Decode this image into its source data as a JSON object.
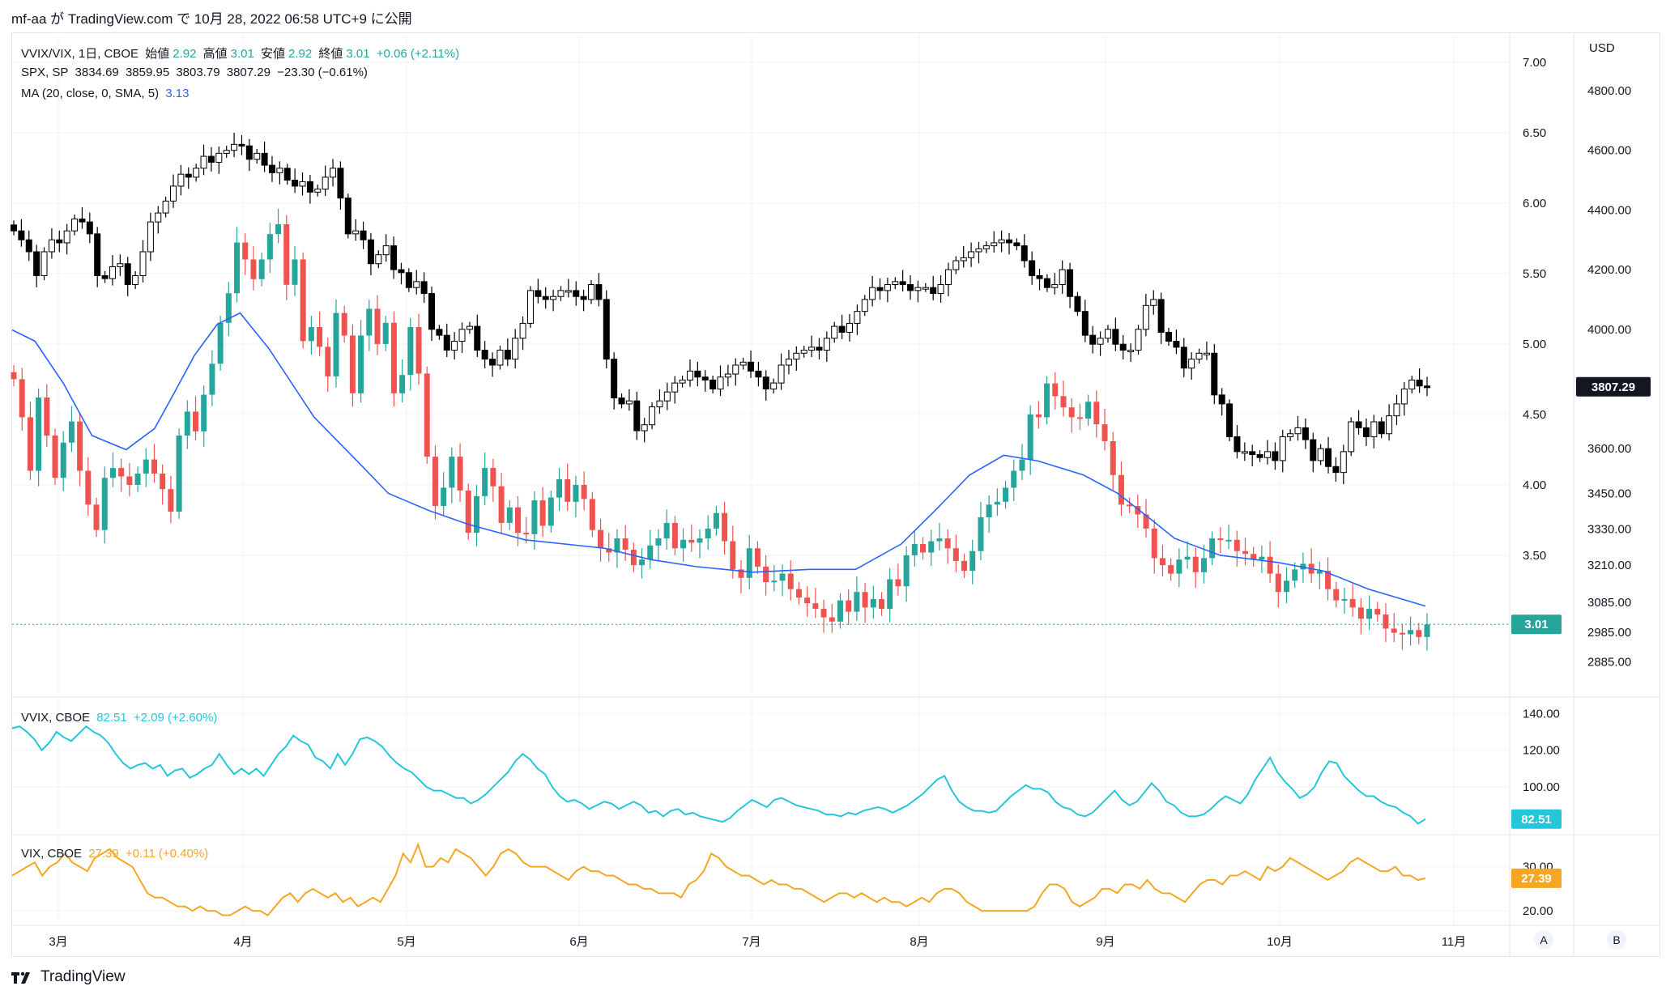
{
  "header": {
    "text": "mf-aa が TradingView.com で 10月 28, 2022 06:58 UTC+9 に公開"
  },
  "brand": {
    "name": "TradingView"
  },
  "scale_buttons": {
    "a": "A",
    "b": "B"
  },
  "legend_main": {
    "line1": {
      "symbol": "VVIX/VIX, 1日, CBOE",
      "open_label": "始値",
      "open": "2.92",
      "high_label": "高値",
      "high": "3.01",
      "low_label": "安値",
      "low": "2.92",
      "close_label": "終値",
      "close": "3.01",
      "change": "+0.06 (+2.11%)"
    },
    "line2": {
      "symbol": "SPX, SP",
      "open": "3834.69",
      "high": "3859.95",
      "low": "3803.79",
      "close": "3807.29",
      "change": "−23.30 (−0.61%)"
    },
    "line3": {
      "label": "MA (20, close, 0, SMA, 5)",
      "value": "3.13"
    }
  },
  "legend_vvix": {
    "symbol": "VVIX, CBOE",
    "value": "82.51",
    "change": "+2.09 (+2.60%)"
  },
  "legend_vix": {
    "symbol": "VIX, CBOE",
    "value": "27.39",
    "change": "+0.11 (+0.40%)"
  },
  "colors": {
    "up": "#26a69a",
    "down": "#ef5350",
    "ma": "#2962ff",
    "vvix": "#26c6da",
    "vix": "#f5a623",
    "spx": "#000000",
    "grid": "#f0f3fa"
  },
  "chart_data": [
    {
      "type": "candlestick",
      "title": "VVIX/VIX, 1日, CBOE",
      "axis_right": "left",
      "ylim": [
        2.5,
        7.2
      ],
      "yticks": [
        "7.00",
        "6.50",
        "6.00",
        "5.50",
        "5.00",
        "4.50",
        "4.00",
        "3.50"
      ],
      "last_value_label": "3.01",
      "x_months": [
        "3月",
        "4月",
        "5月",
        "6月",
        "7月",
        "8月",
        "9月",
        "10月",
        "11月"
      ],
      "closes": [
        4.75,
        4.48,
        4.1,
        4.62,
        4.35,
        4.05,
        4.3,
        4.45,
        4.1,
        3.86,
        3.68,
        4.05,
        4.12,
        4.06,
        4.0,
        4.08,
        4.18,
        4.08,
        3.97,
        3.81,
        4.35,
        4.52,
        4.38,
        4.64,
        4.86,
        5.15,
        5.36,
        5.72,
        5.6,
        5.46,
        5.6,
        5.78,
        5.85,
        5.42,
        5.6,
        5.02,
        5.12,
        4.98,
        4.77,
        5.22,
        5.06,
        4.65,
        5.06,
        5.25,
        5.0,
        5.15,
        4.65,
        4.78,
        5.12,
        4.79,
        4.2,
        3.85,
        3.98,
        4.2,
        3.96,
        3.66,
        3.92,
        4.12,
        3.99,
        3.73,
        3.84,
        3.66,
        3.65,
        3.89,
        3.71,
        3.91,
        4.04,
        3.88,
        4.0,
        3.9,
        3.68,
        3.55,
        3.52,
        3.62,
        3.54,
        3.43,
        3.47,
        3.57,
        3.62,
        3.73,
        3.55,
        3.61,
        3.59,
        3.62,
        3.69,
        3.8,
        3.6,
        3.4,
        3.34,
        3.55,
        3.42,
        3.31,
        3.32,
        3.37,
        3.26,
        3.2,
        3.16,
        3.12,
        3.06,
        3.03,
        3.18,
        3.1,
        3.24,
        3.13,
        3.19,
        3.12,
        3.33,
        3.28,
        3.5,
        3.58,
        3.52,
        3.6,
        3.62,
        3.55,
        3.46,
        3.39,
        3.53,
        3.77,
        3.86,
        3.88,
        3.98,
        4.1,
        4.18,
        4.5,
        4.48,
        4.72,
        4.63,
        4.55,
        4.48,
        4.47,
        4.59,
        4.43,
        4.31,
        4.07,
        3.86,
        3.85,
        3.79,
        3.69,
        3.48,
        3.43,
        3.37,
        3.47,
        3.49,
        3.38,
        3.48,
        3.62,
        3.61,
        3.61,
        3.53,
        3.51,
        3.47,
        3.49,
        3.37,
        3.24,
        3.32,
        3.4,
        3.44,
        3.37,
        3.39,
        3.26,
        3.18,
        3.19,
        3.13,
        3.05,
        3.12,
        3.08,
        2.98,
        2.95,
        2.94,
        2.97,
        2.92,
        3.01
      ]
    },
    {
      "type": "candlestick",
      "title": "SPX, SP",
      "axis": "right",
      "ylim": [
        2770,
        4990
      ],
      "yticks": [
        "4800.00",
        "4600.00",
        "4400.00",
        "4200.00",
        "4000.00",
        "3600.00",
        "3450.00",
        "3330.00",
        "3210.00",
        "3085.00",
        "2985.00",
        "2885.00"
      ],
      "last_value_label": "3807.29",
      "closes": [
        4330,
        4300,
        4260,
        4180,
        4260,
        4300,
        4290,
        4330,
        4370,
        4360,
        4320,
        4180,
        4170,
        4210,
        4220,
        4150,
        4180,
        4260,
        4360,
        4390,
        4430,
        4480,
        4520,
        4510,
        4540,
        4580,
        4560,
        4590,
        4600,
        4620,
        4615,
        4570,
        4590,
        4550,
        4525,
        4540,
        4500,
        4480,
        4495,
        4460,
        4470,
        4510,
        4540,
        4440,
        4320,
        4330,
        4300,
        4220,
        4250,
        4280,
        4200,
        4190,
        4140,
        4160,
        4120,
        4000,
        3980,
        3930,
        3960,
        4000,
        4010,
        3930,
        3900,
        3880,
        3930,
        3900,
        3970,
        4020,
        4130,
        4110,
        4100,
        4110,
        4130,
        4130,
        4110,
        4100,
        4150,
        4100,
        3900,
        3770,
        3750,
        3760,
        3660,
        3680,
        3740,
        3760,
        3790,
        3820,
        3830,
        3860,
        3840,
        3830,
        3800,
        3840,
        3850,
        3880,
        3890,
        3860,
        3840,
        3800,
        3820,
        3880,
        3900,
        3920,
        3930,
        3940,
        3930,
        3970,
        4010,
        3990,
        4020,
        4060,
        4100,
        4140,
        4130,
        4150,
        4160,
        4150,
        4130,
        4140,
        4140,
        4120,
        4150,
        4200,
        4230,
        4240,
        4260,
        4270,
        4280,
        4290,
        4300,
        4290,
        4280,
        4230,
        4180,
        4170,
        4140,
        4150,
        4200,
        4110,
        4060,
        3980,
        3950,
        3970,
        4000,
        3950,
        3930,
        3930,
        4000,
        4080,
        4100,
        3990,
        3960,
        3940,
        3870,
        3900,
        3920,
        3920,
        3780,
        3750,
        3640,
        3590,
        3590,
        3580,
        3570,
        3590,
        3560,
        3640,
        3650,
        3670,
        3630,
        3560,
        3600,
        3540,
        3520,
        3590,
        3690,
        3670,
        3640,
        3690,
        3650,
        3710,
        3750,
        3800,
        3830,
        3810,
        3807.29
      ]
    },
    {
      "type": "line",
      "title": "MA (20, close, 0, SMA, 5)",
      "points": [
        [
          0,
          5.1
        ],
        [
          20,
          5.02
        ],
        [
          45,
          4.72
        ],
        [
          70,
          4.35
        ],
        [
          100,
          4.25
        ],
        [
          125,
          4.4
        ],
        [
          140,
          4.62
        ],
        [
          160,
          4.92
        ],
        [
          180,
          5.14
        ],
        [
          200,
          5.22
        ],
        [
          225,
          4.97
        ],
        [
          265,
          4.48
        ],
        [
          305,
          4.15
        ],
        [
          330,
          3.94
        ],
        [
          365,
          3.82
        ],
        [
          400,
          3.72
        ],
        [
          450,
          3.61
        ],
        [
          520,
          3.55
        ],
        [
          560,
          3.47
        ],
        [
          600,
          3.42
        ],
        [
          650,
          3.38
        ],
        [
          700,
          3.4
        ],
        [
          740,
          3.4
        ],
        [
          780,
          3.58
        ],
        [
          810,
          3.82
        ],
        [
          840,
          4.07
        ],
        [
          870,
          4.21
        ],
        [
          900,
          4.17
        ],
        [
          940,
          4.07
        ],
        [
          970,
          3.94
        ],
        [
          1000,
          3.75
        ],
        [
          1020,
          3.62
        ],
        [
          1060,
          3.5
        ],
        [
          1110,
          3.45
        ],
        [
          1150,
          3.39
        ],
        [
          1190,
          3.26
        ],
        [
          1240,
          3.14
        ]
      ],
      "point_units": [
        "bar_index",
        "VVIX/VIX"
      ]
    },
    {
      "type": "line",
      "title": "VVIX, CBOE",
      "ylim": [
        78,
        145
      ],
      "yticks": [
        "140.00",
        "120.00",
        "100.00"
      ],
      "last_value_label": "82.51",
      "values": [
        132,
        133,
        130,
        126,
        120,
        124,
        130,
        127,
        125,
        129,
        133,
        130,
        128,
        124,
        118,
        113,
        110,
        112,
        113,
        110,
        112,
        106,
        109,
        110,
        105,
        107,
        110,
        112,
        118,
        112,
        107,
        110,
        107,
        110,
        106,
        112,
        118,
        122,
        128,
        125,
        123,
        116,
        114,
        110,
        118,
        112,
        118,
        126,
        127,
        125,
        122,
        117,
        113,
        110,
        108,
        104,
        100,
        98,
        98,
        96,
        94,
        94,
        91,
        93,
        96,
        100,
        104,
        108,
        114,
        118,
        115,
        110,
        107,
        100,
        95,
        92,
        93,
        91,
        88,
        90,
        92,
        91,
        88,
        90,
        92,
        90,
        86,
        87,
        84,
        87,
        88,
        85,
        86,
        84,
        83,
        82,
        81,
        83,
        87,
        90,
        93,
        91,
        89,
        93,
        94,
        92,
        90,
        89,
        88,
        87,
        85,
        85,
        84,
        86,
        85,
        87,
        88,
        89,
        88,
        86,
        88,
        90,
        93,
        96,
        100,
        104,
        106,
        98,
        92,
        89,
        87,
        87,
        86,
        87,
        91,
        95,
        98,
        101,
        99,
        99,
        97,
        92,
        89,
        88,
        85,
        84,
        86,
        90,
        94,
        98,
        93,
        90,
        92,
        97,
        102,
        98,
        92,
        90,
        86,
        84,
        84,
        85,
        88,
        92,
        95,
        93,
        91,
        96,
        104,
        110,
        116,
        108,
        103,
        99,
        94,
        96,
        100,
        108,
        114,
        113,
        106,
        102,
        98,
        95,
        95,
        92,
        90,
        89,
        86,
        84,
        80,
        82.51
      ]
    },
    {
      "type": "line",
      "title": "VIX, CBOE",
      "ylim": [
        18,
        36
      ],
      "yticks": [
        "30.00",
        "20.00"
      ],
      "last_value_label": "27.39",
      "values": [
        28,
        29,
        30,
        31,
        28,
        30,
        31,
        33,
        31,
        30,
        29,
        32,
        33,
        34,
        32,
        31,
        30,
        27,
        24,
        23,
        23,
        22,
        21,
        21,
        20,
        21,
        20,
        20,
        19,
        19,
        20,
        21,
        20,
        20,
        19,
        21,
        23,
        24,
        22,
        24,
        25,
        24,
        23,
        24,
        22,
        23,
        21,
        22,
        23,
        22,
        25,
        28,
        33,
        31,
        35,
        30,
        30,
        32,
        31,
        34,
        33,
        32,
        30,
        28,
        30,
        33,
        34,
        33,
        31,
        30,
        30,
        30,
        29,
        28,
        27,
        29,
        30,
        29,
        29,
        28,
        28,
        27,
        26,
        26,
        25,
        25,
        24,
        24,
        24,
        23,
        26,
        27,
        29,
        33,
        32,
        30,
        29,
        28,
        28,
        27,
        26,
        27,
        26,
        26,
        25,
        25,
        24,
        23,
        22,
        23,
        24,
        24,
        23,
        24,
        23,
        22,
        23,
        22,
        22,
        21,
        22,
        23,
        22,
        24,
        25,
        25,
        24,
        22,
        21,
        20,
        20,
        20,
        20,
        20,
        20,
        20,
        21,
        24,
        26,
        26,
        25,
        22,
        21,
        22,
        23,
        25,
        25,
        24,
        26,
        26,
        25,
        27,
        25,
        24,
        24,
        23,
        22,
        24,
        26,
        27,
        27,
        26,
        28,
        28,
        29,
        28,
        27,
        30,
        29,
        30,
        32,
        31,
        30,
        29,
        28,
        27,
        28,
        29,
        31,
        32,
        31,
        30,
        29,
        29,
        30,
        28,
        28,
        27,
        27.39
      ]
    }
  ]
}
